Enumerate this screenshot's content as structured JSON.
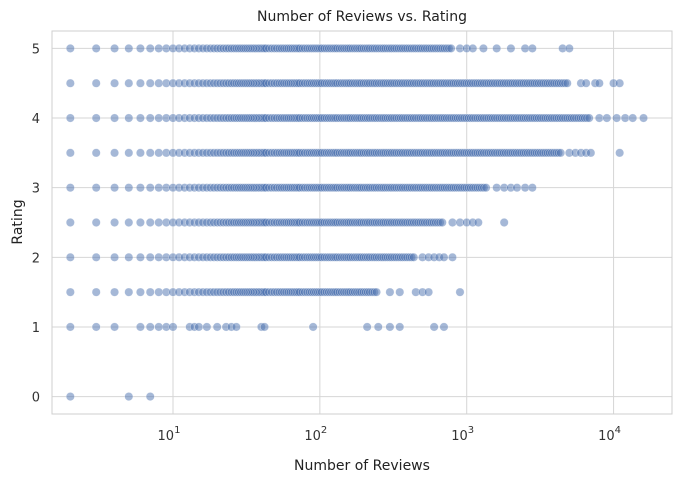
{
  "chart_data": {
    "type": "scatter",
    "title": "Number of Reviews vs. Rating",
    "xlabel": "Number of Reviews",
    "ylabel": "Rating",
    "xscale": "log",
    "xlim": [
      1.5,
      25000
    ],
    "ylim": [
      -0.25,
      5.25
    ],
    "grid": true,
    "point_color": "#4c72b0",
    "point_alpha": 0.5,
    "xticks": [
      {
        "value": 10,
        "base": "10",
        "exp": "1"
      },
      {
        "value": 100,
        "base": "10",
        "exp": "2"
      },
      {
        "value": 1000,
        "base": "10",
        "exp": "3"
      },
      {
        "value": 10000,
        "base": "10",
        "exp": "4"
      }
    ],
    "yticks": [
      {
        "value": 0,
        "label": "0"
      },
      {
        "value": 1,
        "label": "1"
      },
      {
        "value": 2,
        "label": "2"
      },
      {
        "value": 3,
        "label": "3"
      },
      {
        "value": 4,
        "label": "4"
      },
      {
        "value": 5,
        "label": "5"
      }
    ],
    "series": [
      {
        "rating": 5.0,
        "dense_max": 800,
        "outliers": [
          900,
          1000,
          1100,
          1300,
          1600,
          2000,
          2500,
          2800,
          4500,
          5000
        ]
      },
      {
        "rating": 4.5,
        "dense_max": 5000,
        "outliers": [
          6000,
          6500,
          7500,
          8000,
          10000,
          11000
        ]
      },
      {
        "rating": 4.0,
        "dense_max": 7000,
        "outliers": [
          8000,
          9000,
          10500,
          12000,
          13500,
          16000
        ]
      },
      {
        "rating": 3.5,
        "dense_max": 4500,
        "outliers": [
          5000,
          5500,
          6000,
          6500,
          7000,
          11000
        ]
      },
      {
        "rating": 3.0,
        "dense_max": 1400,
        "outliers": [
          1600,
          1800,
          2000,
          2200,
          2500,
          2800
        ]
      },
      {
        "rating": 2.5,
        "dense_max": 700,
        "outliers": [
          800,
          900,
          1000,
          1100,
          1200,
          1800
        ]
      },
      {
        "rating": 2.0,
        "dense_max": 450,
        "outliers": [
          500,
          550,
          600,
          650,
          700,
          800
        ]
      },
      {
        "rating": 1.5,
        "dense_max": 250,
        "outliers": [
          300,
          350,
          450,
          500,
          550,
          900
        ]
      },
      {
        "rating": 1.0,
        "dense_max": 4,
        "outliers": [
          6,
          7,
          8,
          9,
          10,
          13,
          14,
          15,
          17,
          20,
          23,
          25,
          27,
          40,
          42,
          90,
          210,
          250,
          300,
          350,
          600,
          700
        ]
      },
      {
        "rating": 0.0,
        "dense_max": 2,
        "outliers": [
          5,
          7
        ]
      }
    ]
  }
}
